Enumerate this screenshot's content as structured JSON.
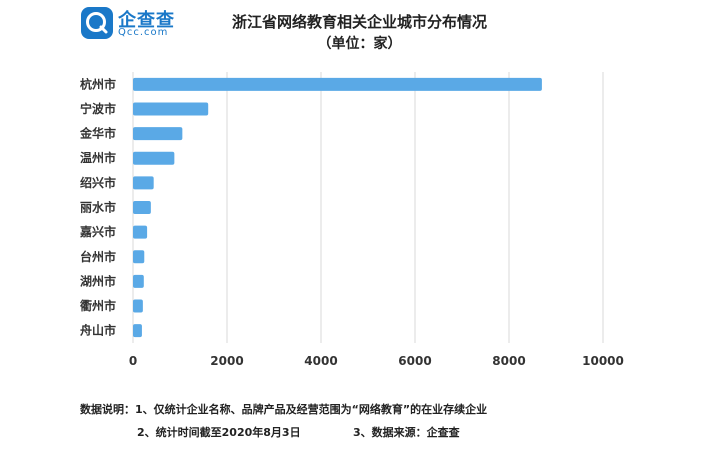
{
  "logo": {
    "name": "企查查",
    "sub": "Qcc.com",
    "icon": "qcc-logo-icon",
    "color": "#1a78c8"
  },
  "title": "浙江省网络教育相关企业城市分布情况",
  "subtitle": "（单位：家）",
  "notes": {
    "line1": "数据说明：1、仅统计企业名称、品牌产品及经营范围为“网络教育”的在业存续企业",
    "line2": "2、统计时间截至2020年8月3日",
    "line3": "3、数据来源：企查查"
  },
  "chart_data": {
    "type": "bar",
    "orientation": "horizontal",
    "categories": [
      "杭州市",
      "宁波市",
      "金华市",
      "温州市",
      "绍兴市",
      "丽水市",
      "嘉兴市",
      "台州市",
      "湖州市",
      "衢州市",
      "舟山市"
    ],
    "values": [
      8700,
      1600,
      1050,
      880,
      440,
      380,
      300,
      240,
      230,
      210,
      190
    ],
    "xlim": [
      0,
      10000
    ],
    "xticks": [
      "0",
      "2000",
      "4000",
      "6000",
      "8000",
      "10000"
    ],
    "grid": true,
    "bar_color": "#5aa9e6",
    "grid_color": "#d9d9d9"
  }
}
